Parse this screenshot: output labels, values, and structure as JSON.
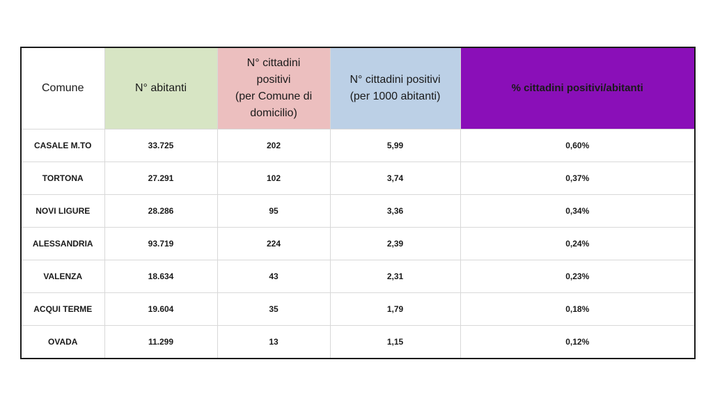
{
  "chart_data": {
    "type": "table",
    "columns": [
      "Comune",
      "N° abitanti",
      "N° cittadini positivi (per Comune di domicilio)",
      "N° cittadini positivi (per 1000 abitanti)",
      "% cittadini positivi/abitanti"
    ],
    "header_lines": [
      [
        "Comune"
      ],
      [
        "N° abitanti"
      ],
      [
        "N° cittadini",
        "positivi",
        "(per Comune di",
        "domicilio)"
      ],
      [
        "N° cittadini positivi",
        "(per 1000 abitanti)"
      ],
      [
        "% cittadini positivi/abitanti"
      ]
    ],
    "header_colors": [
      "#ffffff",
      "#d7e5c4",
      "#ecbfbf",
      "#bcd0e6",
      "#8a0fb8"
    ],
    "rows": [
      [
        "CASALE M.TO",
        "33.725",
        "202",
        "5,99",
        "0,60%"
      ],
      [
        "TORTONA",
        "27.291",
        "102",
        "3,74",
        "0,37%"
      ],
      [
        "NOVI LIGURE",
        "28.286",
        "95",
        "3,36",
        "0,34%"
      ],
      [
        "ALESSANDRIA",
        "93.719",
        "224",
        "2,39",
        "0,24%"
      ],
      [
        "VALENZA",
        "18.634",
        "43",
        "2,31",
        "0,23%"
      ],
      [
        "ACQUI TERME",
        "19.604",
        "35",
        "1,79",
        "0,18%"
      ],
      [
        "OVADA",
        "11.299",
        "13",
        "1,15",
        "0,12%"
      ]
    ]
  }
}
